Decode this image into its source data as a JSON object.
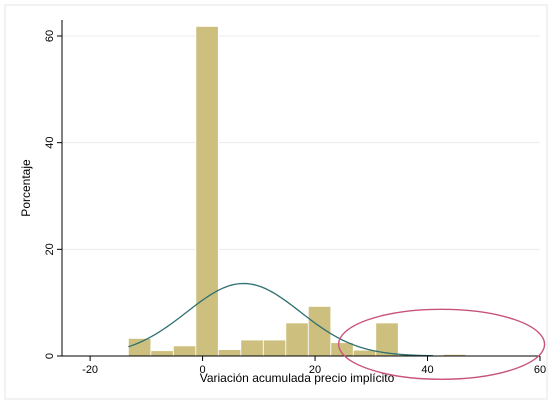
{
  "chart_data": {
    "type": "bar",
    "xlabel": "Variación acumulada precio implícito",
    "ylabel": "Porcentaje",
    "xlim": [
      -25,
      60
    ],
    "ylim": [
      0,
      63
    ],
    "xticks": [
      "-20",
      "0",
      "20",
      "40",
      "60"
    ],
    "yticks": [
      "0",
      "20",
      "40",
      "60"
    ],
    "grid": true,
    "bar_color": "#cdc07e",
    "curve_color": "#2e6f6f",
    "annotation_color": "#c8527e",
    "bins": [
      {
        "x0": -13.2,
        "x1": -9.2,
        "value": 3.3
      },
      {
        "x0": -9.2,
        "x1": -5.2,
        "value": 1.0
      },
      {
        "x0": -5.2,
        "x1": -1.2,
        "value": 1.9
      },
      {
        "x0": -1.2,
        "x1": 2.8,
        "value": 61.8
      },
      {
        "x0": 2.8,
        "x1": 6.8,
        "value": 1.2
      },
      {
        "x0": 6.8,
        "x1": 10.8,
        "value": 3.0
      },
      {
        "x0": 10.8,
        "x1": 14.8,
        "value": 3.0
      },
      {
        "x0": 14.8,
        "x1": 18.8,
        "value": 6.2
      },
      {
        "x0": 18.8,
        "x1": 22.8,
        "value": 9.3
      },
      {
        "x0": 22.8,
        "x1": 26.8,
        "value": 2.5
      },
      {
        "x0": 26.8,
        "x1": 30.8,
        "value": 1.1
      },
      {
        "x0": 30.8,
        "x1": 34.8,
        "value": 6.2
      },
      {
        "x0": 34.8,
        "x1": 38.8,
        "value": 0.3
      },
      {
        "x0": 42.8,
        "x1": 46.8,
        "value": 0.3
      }
    ],
    "normal_curve": {
      "mean": 7.3,
      "sd": 10.1,
      "peak": 13.6,
      "x_from": -13.2,
      "x_to": 41
    }
  }
}
